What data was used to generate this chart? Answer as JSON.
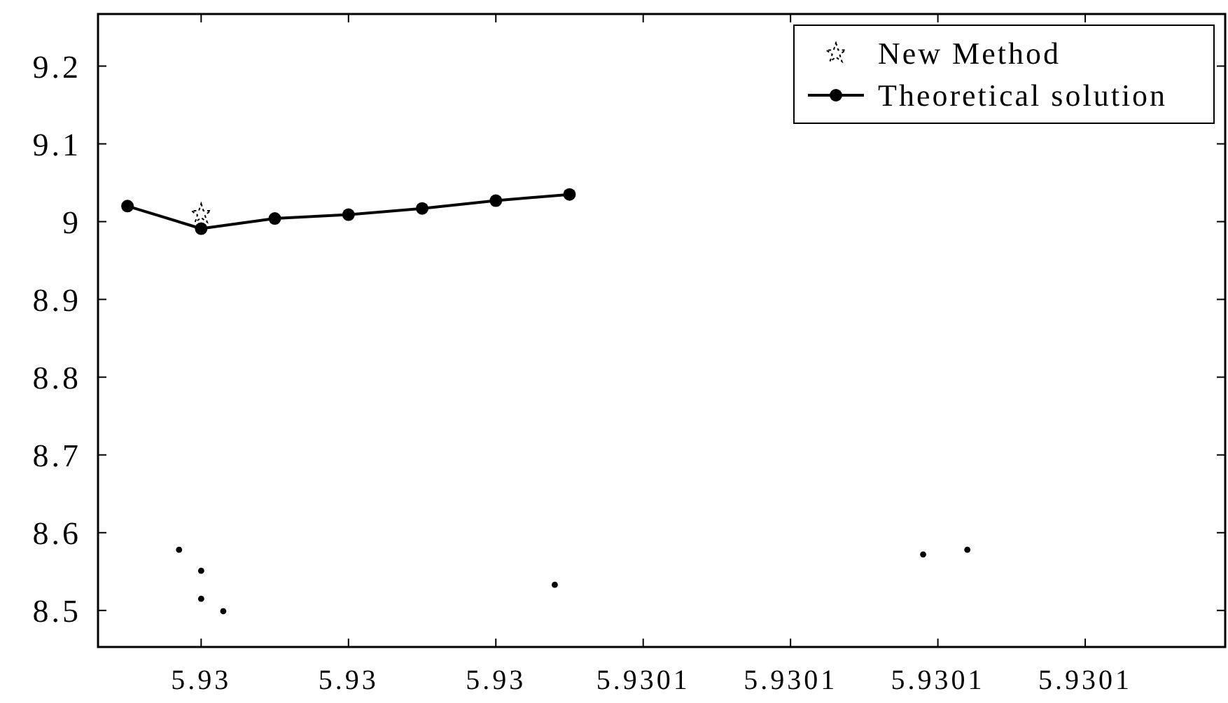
{
  "chart_data": {
    "type": "line",
    "xlim": [
      5.929976,
      5.930129
    ],
    "ylim": [
      8.453,
      9.267
    ],
    "xticks": [
      {
        "value": 5.92999,
        "label": "5.93"
      },
      {
        "value": 5.93001,
        "label": "5.93"
      },
      {
        "value": 5.93003,
        "label": "5.93"
      },
      {
        "value": 5.93005,
        "label": "5.9301"
      },
      {
        "value": 5.93007,
        "label": "5.9301"
      },
      {
        "value": 5.93009,
        "label": "5.9301"
      },
      {
        "value": 5.93011,
        "label": "5.9301"
      }
    ],
    "yticks": [
      8.5,
      8.6,
      8.7,
      8.8,
      8.9,
      {
        "value": 9,
        "label": "9"
      },
      9.1,
      9.2
    ],
    "series": [
      {
        "type": "scatter",
        "color": "#000000",
        "marker": "circle",
        "x": [
          5.929987,
          5.92999,
          5.92999,
          5.929993,
          5.930038,
          5.930088,
          5.930094
        ],
        "values": [
          8.578,
          8.551,
          8.515,
          8.499,
          8.533,
          8.572,
          8.578
        ]
      },
      {
        "name": "New Method",
        "type": "scatter",
        "color": "#000000",
        "marker": "star",
        "x": [
          5.92999
        ],
        "values": [
          9.01
        ]
      },
      {
        "name": "Theoretical solution",
        "color": "#000000",
        "marker": "circle",
        "line_style": "solid",
        "x": [
          5.92998,
          5.92999,
          5.93,
          5.93001,
          5.93002,
          5.93003,
          5.93004
        ],
        "values": [
          9.02,
          8.991,
          9.004,
          9.009,
          9.017,
          9.027,
          9.035
        ]
      }
    ],
    "legend": "top right",
    "grid": false
  }
}
